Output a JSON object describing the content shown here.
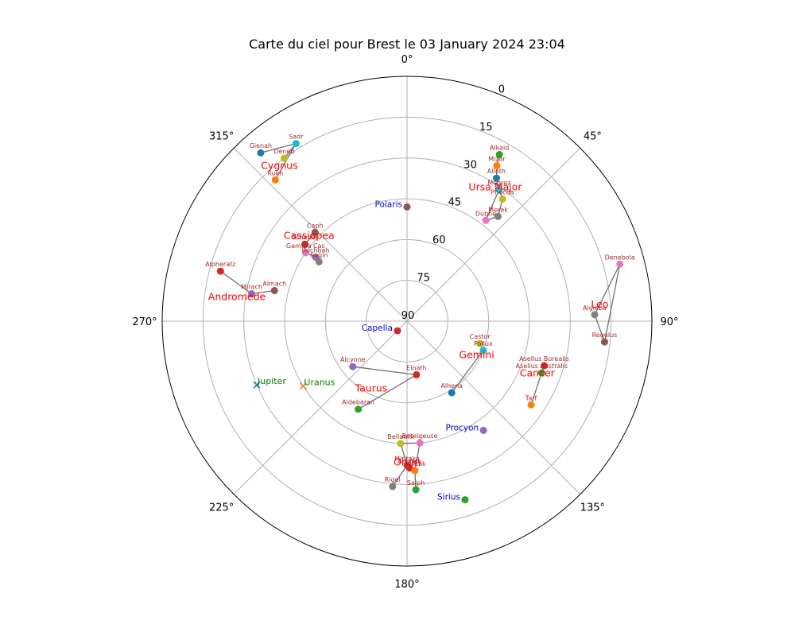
{
  "chart_data": {
    "type": "scatter",
    "projection": "polar",
    "title": "Carte du ciel pour Brest le 03 January 2024 23:04",
    "theta_zero": "N",
    "theta_direction": "clockwise",
    "r_axis": "altitude (90 at center, 0 at edge)",
    "theta_ticks": [
      "0°",
      "45°",
      "90°",
      "135°",
      "180°",
      "225°",
      "270°",
      "315°"
    ],
    "r_ticks": [
      "0",
      "15",
      "30",
      "45",
      "60",
      "75",
      "90"
    ],
    "grid": true,
    "constellations": [
      {
        "name": "Cygnus",
        "label_az": 320,
        "label_alt": 17,
        "stars": [
          {
            "name": "Sadr",
            "az": 328,
            "alt": 13,
            "color": "#17becf"
          },
          {
            "name": "Deneb",
            "az": 323,
            "alt": 15,
            "color": "#bcbd22"
          },
          {
            "name": "Gienah",
            "az": 319,
            "alt": 8,
            "color": "#1f77b4"
          },
          {
            "name": "Rukh",
            "az": 317,
            "alt": 19,
            "color": "#ff7f0e"
          }
        ],
        "lines": [
          [
            "Gienah",
            "Sadr"
          ],
          [
            "Sadr",
            "Deneb"
          ],
          [
            "Sadr",
            "Rukh"
          ]
        ]
      },
      {
        "name": "Cassiopea",
        "label_az": 310,
        "label_alt": 43,
        "stars": [
          {
            "name": "Caph",
            "az": 314,
            "alt": 43,
            "color": "#8c564b"
          },
          {
            "name": "Schedar",
            "az": 307,
            "alt": 43,
            "color": "#d62728"
          },
          {
            "name": "Gamma Cas",
            "az": 304,
            "alt": 45,
            "color": "#e377c2"
          },
          {
            "name": "Ruchbah",
            "az": 305,
            "alt": 49,
            "color": "#9467bd"
          },
          {
            "name": "Segin",
            "az": 304,
            "alt": 51,
            "color": "#7f7f7f"
          }
        ],
        "lines": [
          [
            "Caph",
            "Schedar"
          ],
          [
            "Schedar",
            "Gamma Cas"
          ],
          [
            "Gamma Cas",
            "Ruchbah"
          ],
          [
            "Ruchbah",
            "Segin"
          ]
        ]
      },
      {
        "name": "Andromede",
        "label_az": 277,
        "label_alt": 27,
        "stars": [
          {
            "name": "Alpheratz",
            "az": 285,
            "alt": 19,
            "color": "#d62728"
          },
          {
            "name": "Mirach",
            "az": 280,
            "alt": 32,
            "color": "#9467bd"
          },
          {
            "name": "Almach",
            "az": 283,
            "alt": 40,
            "color": "#8c564b"
          }
        ],
        "lines": [
          [
            "Alpheratz",
            "Mirach"
          ],
          [
            "Mirach",
            "Almach"
          ]
        ]
      },
      {
        "name": "Ursa Major",
        "label_az": 34,
        "label_alt": 32,
        "stars": [
          {
            "name": "Alkaid",
            "az": 29,
            "alt": 20,
            "color": "#2ca02c"
          },
          {
            "name": "Mizar",
            "az": 30,
            "alt": 24,
            "color": "#ff7f0e"
          },
          {
            "name": "Alioth",
            "az": 32,
            "alt": 28,
            "color": "#1f77b4"
          },
          {
            "name": "Megrez",
            "az": 35,
            "alt": 31,
            "color": "#17becf"
          },
          {
            "name": "Phecda",
            "az": 38,
            "alt": 33,
            "color": "#bcbd22"
          },
          {
            "name": "Merak",
            "az": 41,
            "alt": 39,
            "color": "#7f7f7f"
          },
          {
            "name": "Dubhe",
            "az": 38,
            "alt": 43,
            "color": "#e377c2"
          }
        ],
        "lines": [
          [
            "Alkaid",
            "Mizar"
          ],
          [
            "Mizar",
            "Alioth"
          ],
          [
            "Alioth",
            "Megrez"
          ],
          [
            "Megrez",
            "Phecda"
          ],
          [
            "Phecda",
            "Merak"
          ],
          [
            "Merak",
            "Dubhe"
          ],
          [
            "Dubhe",
            "Megrez"
          ]
        ]
      },
      {
        "name": "Leo",
        "label_az": 86,
        "label_alt": 19,
        "stars": [
          {
            "name": "Denebola",
            "az": 75,
            "alt": 9,
            "color": "#e377c2"
          },
          {
            "name": "Algieba",
            "az": 88,
            "alt": 21,
            "color": "#7f7f7f"
          },
          {
            "name": "Regulus",
            "az": 96,
            "alt": 17,
            "color": "#8c564b"
          }
        ],
        "lines": [
          [
            "Denebola",
            "Algieba"
          ],
          [
            "Denebola",
            "Regulus"
          ],
          [
            "Algieba",
            "Regulus"
          ]
        ]
      },
      {
        "name": "Cancer",
        "label_az": 113,
        "label_alt": 38,
        "stars": [
          {
            "name": "Asellus Borealis",
            "az": 108,
            "alt": 37,
            "color": "#d62728"
          },
          {
            "name": "Asellus Australis",
            "az": 111,
            "alt": 37,
            "color": "#2ca02c"
          },
          {
            "name": "Tarf",
            "az": 124,
            "alt": 35,
            "color": "#ff7f0e"
          }
        ],
        "lines": [
          [
            "Asellus Borealis",
            "Asellus Australis"
          ],
          [
            "Asellus Australis",
            "Tarf"
          ]
        ]
      },
      {
        "name": "Gemini",
        "label_az": 118,
        "label_alt": 61,
        "stars": [
          {
            "name": "Castor",
            "az": 107,
            "alt": 62,
            "color": "#bcbd22"
          },
          {
            "name": "Pollux",
            "az": 111,
            "alt": 60,
            "color": "#17becf"
          },
          {
            "name": "Alhena",
            "az": 148,
            "alt": 59,
            "color": "#1f77b4"
          }
        ],
        "lines": [
          [
            "Castor",
            "Pollux"
          ],
          [
            "Pollux",
            "Alhena"
          ]
        ]
      },
      {
        "name": "Taurus",
        "label_az": 207,
        "label_alt": 61,
        "stars": [
          {
            "name": "Elnath",
            "az": 170,
            "alt": 70,
            "color": "#d62728"
          },
          {
            "name": "Alcyone",
            "az": 230,
            "alt": 64,
            "color": "#9467bd"
          },
          {
            "name": "Aldebaran",
            "az": 209,
            "alt": 53,
            "color": "#2ca02c"
          }
        ],
        "lines": [
          [
            "Alcyone",
            "Elnath"
          ],
          [
            "Elnath",
            "Aldebaran"
          ]
        ]
      },
      {
        "name": "Orion",
        "label_az": 180,
        "label_alt": 37,
        "stars": [
          {
            "name": "Betelgeuse",
            "az": 174,
            "alt": 45,
            "color": "#e377c2"
          },
          {
            "name": "Bellatrix",
            "az": 183,
            "alt": 45,
            "color": "#bcbd22"
          },
          {
            "name": "Mintaka",
            "az": 180,
            "alt": 37,
            "color": "#8c564b"
          },
          {
            "name": "Alnilam",
            "az": 179,
            "alt": 36,
            "color": "#d62728"
          },
          {
            "name": "Alnitak",
            "az": 177,
            "alt": 35,
            "color": "#ff7f0e"
          },
          {
            "name": "Rigel",
            "az": 185,
            "alt": 29,
            "color": "#7f7f7f"
          },
          {
            "name": "Saiph",
            "az": 177,
            "alt": 28,
            "color": "#2ca02c"
          }
        ],
        "lines": [
          [
            "Betelgeuse",
            "Bellatrix"
          ],
          [
            "Betelgeuse",
            "Alnitak"
          ],
          [
            "Bellatrix",
            "Mintaka"
          ],
          [
            "Mintaka",
            "Alnilam"
          ],
          [
            "Alnilam",
            "Alnitak"
          ],
          [
            "Alnitak",
            "Saiph"
          ],
          [
            "Mintaka",
            "Rigel"
          ]
        ]
      }
    ],
    "star_labels_shown": [
      "Sadr",
      "Deneb",
      "Gienah",
      "Rukh",
      "Caph",
      "Schedar",
      "Gamma Cas",
      "Ruchbah",
      "Segin",
      "Alpheratz",
      "Mirach",
      "Almach",
      "Alkaid",
      "Mizar",
      "Alioth",
      "Megrez",
      "Phecda",
      "Merak",
      "Dubhe",
      "Denebola",
      "Algieba",
      "Regulus",
      "Asellus Borealis",
      "Asellus Australis",
      "Tarf",
      "Castor",
      "Pollux",
      "Alhena",
      "Elnath",
      "Alcyone",
      "Aldebaran",
      "Betelgeuse",
      "Bellatrix",
      "Mintaka",
      "Alnilam",
      "Alnitak",
      "Rigel",
      "Saiph"
    ],
    "bright_stars": [
      {
        "name": "Polaris",
        "az": 0,
        "alt": 48,
        "color": "#8c564b"
      },
      {
        "name": "Capella",
        "az": 225,
        "alt": 85,
        "color": "#d62728"
      },
      {
        "name": "Procyon",
        "az": 145,
        "alt": 41,
        "color": "#9467bd"
      },
      {
        "name": "Sirius",
        "az": 162,
        "alt": 21,
        "color": "#2ca02c"
      }
    ],
    "planets": [
      {
        "name": "Jupiter",
        "az": 247,
        "alt": 30,
        "color": "#1f77b4"
      },
      {
        "name": "Uranus",
        "az": 238,
        "alt": 45,
        "color": "#ff7f0e"
      }
    ]
  }
}
